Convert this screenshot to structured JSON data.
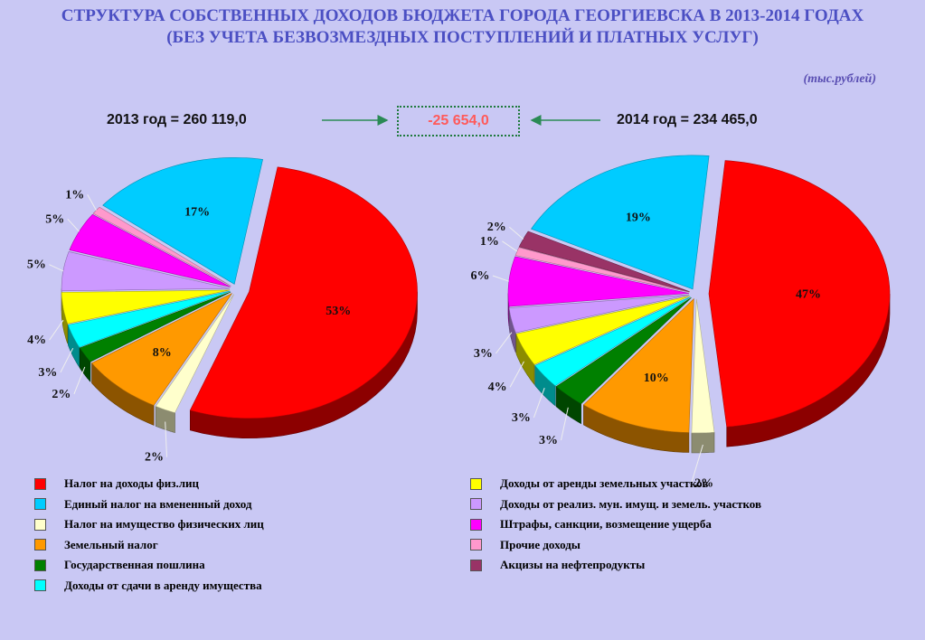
{
  "title": {
    "line1": "СТРУКТУРА СОБСТВЕННЫХ ДОХОДОВ БЮДЖЕТА ГОРОДА ГЕОРГИЕВСКА В 2013-2014 ГОДАХ",
    "line2": "(БЕЗ УЧЕТА БЕЗВОЗМЕЗДНЫХ ПОСТУПЛЕНИЙ И ПЛАТНЫХ УСЛУГ)"
  },
  "units": "(тыс.рублей)",
  "summary": {
    "left": "2013 год = 260 119,0",
    "right": "2014 год = 234 465,0",
    "difference": "-25 654,0"
  },
  "legend": [
    {
      "label": "Налог на доходы физ.лиц",
      "color": "#ff0000"
    },
    {
      "label": "Единый налог на вмененный доход",
      "color": "#00ccff"
    },
    {
      "label": "Налог на имущество физических лиц",
      "color": "#ffffcc"
    },
    {
      "label": "Земельный налог",
      "color": "#ff9900"
    },
    {
      "label": "Государственная пошлина",
      "color": "#008000"
    },
    {
      "label": "Доходы от сдачи в аренду имущества",
      "color": "#00ffff"
    },
    {
      "label": "Доходы от аренды земельных участков",
      "color": "#ffff00"
    },
    {
      "label": "Доходы от реализ. мун. имущ. и земель. участков",
      "color": "#cc99ff"
    },
    {
      "label": "Штрафы, санкции, возмещение ущерба",
      "color": "#ff00ff"
    },
    {
      "label": "Прочие доходы",
      "color": "#ff99cc"
    },
    {
      "label": "Акцизы на нефтепродукты",
      "color": "#993366"
    }
  ],
  "chart_data": [
    {
      "type": "pie",
      "title": "2013 год = 260 119,0",
      "categories": [
        "Налог на доходы физ.лиц",
        "Налог на имущество физических лиц",
        "Земельный налог",
        "Государственная пошлина",
        "Доходы от сдачи в аренду имущества",
        "Доходы от аренды земельных участков",
        "Доходы от реализ. мун. имущ. и земель. участков",
        "Штрафы, санкции, возмещение ущерба",
        "Прочие доходы",
        "Единый налог на вмененный доход"
      ],
      "values": [
        53,
        2,
        8,
        2,
        3,
        4,
        5,
        5,
        1,
        17
      ],
      "labels": [
        "53%",
        "2%",
        "8%",
        "2%",
        "3%",
        "4%",
        "5%",
        "5%",
        "1%",
        "17%"
      ]
    },
    {
      "type": "pie",
      "title": "2014 год = 234 465,0",
      "categories": [
        "Налог на доходы физ.лиц",
        "Налог на имущество физических лиц",
        "Земельный налог",
        "Государственная пошлина",
        "Доходы от сдачи в аренду имущества",
        "Доходы от аренды земельных участков",
        "Доходы от реализ. мун. имущ. и земель. участков",
        "Штрафы, санкции, возмещение ущерба",
        "Прочие доходы",
        "Акцизы на нефтепродукты",
        "Единый налог на вмененный доход"
      ],
      "values": [
        47,
        2,
        10,
        3,
        3,
        4,
        3,
        6,
        1,
        2,
        19
      ],
      "labels": [
        "47%",
        "2%",
        "10%",
        "3%",
        "3%",
        "4%",
        "3%",
        "6%",
        "1%",
        "2%",
        "19%"
      ]
    }
  ]
}
